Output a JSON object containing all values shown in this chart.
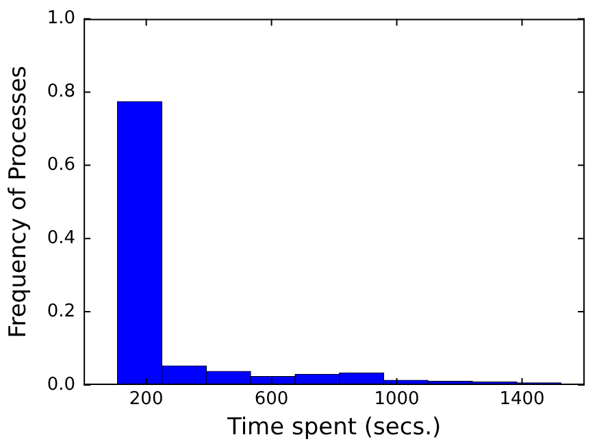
{
  "chart_data": {
    "type": "histogram",
    "xlabel": "Time spent (secs.)",
    "ylabel": "Frequency of Processes",
    "bins": [
      108,
      250,
      392,
      533,
      675,
      817,
      958,
      1100,
      1242,
      1383,
      1525
    ],
    "values": [
      0.774,
      0.052,
      0.037,
      0.023,
      0.029,
      0.033,
      0.013,
      0.01,
      0.008,
      0.006
    ],
    "color": "#0000ff",
    "xlim": [
      0,
      1600
    ],
    "xticks": [
      200,
      600,
      1000,
      1400
    ],
    "ylim": [
      0,
      1
    ],
    "yticks": [
      {
        "value": 0,
        "label": "0.0"
      },
      {
        "value": 0.2,
        "label": "0.2"
      },
      {
        "value": 0.4,
        "label": "0.4"
      },
      {
        "value": 0.6,
        "label": "0.6"
      },
      {
        "value": 0.8,
        "label": "0.8"
      },
      {
        "value": 1,
        "label": "1.0"
      }
    ],
    "grid": false,
    "legend": false
  }
}
